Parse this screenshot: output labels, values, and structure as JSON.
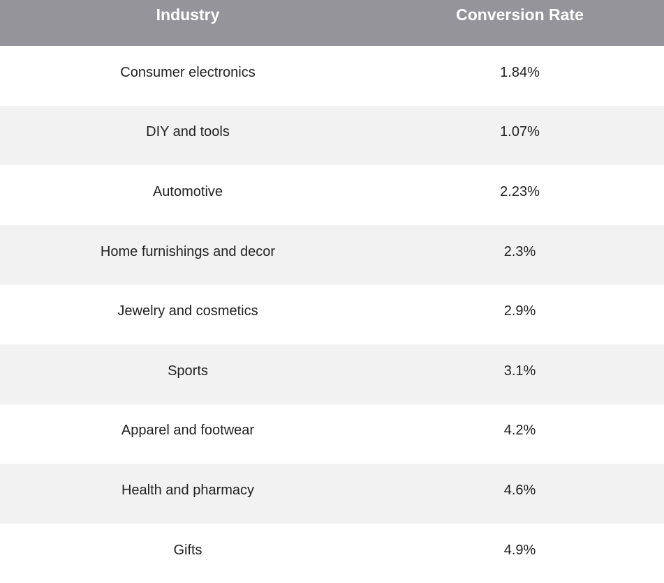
{
  "chart_data": {
    "type": "table",
    "columns": [
      "Industry",
      "Conversion Rate"
    ],
    "rows": [
      [
        "Consumer electronics",
        "1.84%"
      ],
      [
        "DIY and tools",
        "1.07%"
      ],
      [
        "Automotive",
        "2.23%"
      ],
      [
        "Home furnishings and decor",
        "2.3%"
      ],
      [
        "Jewelry and cosmetics",
        "2.9%"
      ],
      [
        "Sports",
        "3.1%"
      ],
      [
        "Apparel and footwear",
        "4.2%"
      ],
      [
        "Health and pharmacy",
        "4.6%"
      ],
      [
        "Gifts",
        "4.9%"
      ]
    ],
    "header_color": "#95949a",
    "stripe_color": "#f2f2f2"
  }
}
